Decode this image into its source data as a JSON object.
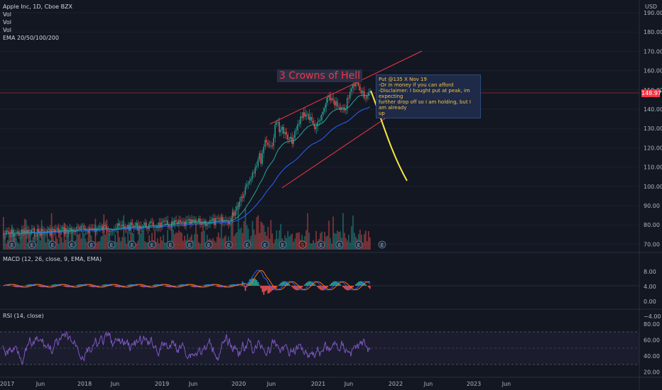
{
  "legend": {
    "symbol": "Apple Inc, 1D, Cboe BZX",
    "lines": [
      "Vol",
      "Vol",
      "Vol",
      "EMA 20/50/100/200"
    ]
  },
  "currency": "USD",
  "price_axis": [
    "190.00",
    "180.00",
    "170.00",
    "160.00",
    "150.00",
    "140.00",
    "130.00",
    "120.00",
    "110.00",
    "100.00",
    "90.00",
    "80.00",
    "70.00"
  ],
  "last_price": "148.97",
  "macd": {
    "title": "MACD (12, 26, close, 9, EMA, EMA)",
    "axis": [
      "8.00",
      "4.00",
      "0.00",
      "−4.00"
    ]
  },
  "rsi": {
    "title": "RSI (14, close)",
    "axis": [
      "80.00",
      "60.00",
      "40.00",
      "20.00"
    ]
  },
  "time_axis": [
    "2017",
    "Jun",
    "2018",
    "Jun",
    "2019",
    "Jun",
    "2020",
    "Jun",
    "2021",
    "Jun",
    "2022",
    "Jun",
    "2023",
    "Jun"
  ],
  "annotations": {
    "title": "3 Crowns of Hell",
    "note_lines": [
      "Put @135 X Nov 19",
      "-Or in money if you can afford",
      "-Disclaimer: I bought put at peak, im expecting",
      "further drop off so I am holding, but I am already",
      "up"
    ]
  },
  "colors": {
    "background": "#131722",
    "up": "#26a69a",
    "down": "#ef5350",
    "channel": "#f23645",
    "projection": "#f5e642",
    "ema1": "#26a69a",
    "ema2": "#2962ff",
    "macd": "#2962ff",
    "signal": "#ff6d00",
    "rsi": "#7e57c2"
  },
  "earnings_marker": "E",
  "dividend_marker": "S"
}
